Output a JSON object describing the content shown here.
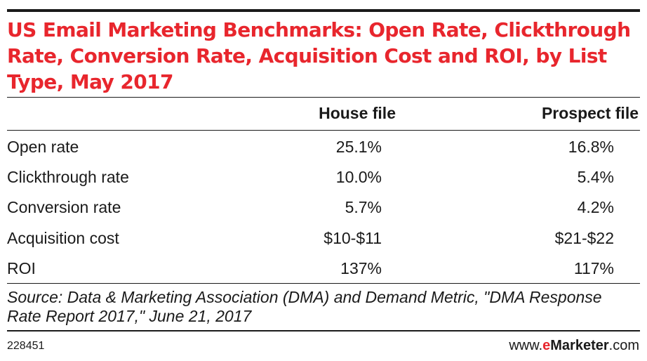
{
  "title": "US Email Marketing Benchmarks: Open Rate, Clickthrough Rate, Conversion Rate, Acquisition Cost and ROI, by List Type, May 2017",
  "chart_data": {
    "type": "table",
    "title": "US Email Marketing Benchmarks: Open Rate, Clickthrough Rate, Conversion Rate, Acquisition Cost and ROI, by List Type, May 2017",
    "columns": [
      "House file",
      "Prospect file"
    ],
    "rows": [
      {
        "label": "Open rate",
        "values": [
          "25.1%",
          "16.8%"
        ]
      },
      {
        "label": "Clickthrough rate",
        "values": [
          "10.0%",
          "5.4%"
        ]
      },
      {
        "label": "Conversion rate",
        "values": [
          "5.7%",
          "4.2%"
        ]
      },
      {
        "label": "Acquisition cost",
        "values": [
          "$10-$11",
          "$21-$22"
        ]
      },
      {
        "label": "ROI",
        "values": [
          "137%",
          "117%"
        ]
      }
    ]
  },
  "source": "Source: Data & Marketing Association (DMA) and Demand Metric, \"DMA Response Rate Report 2017,\" June 21, 2017",
  "chart_id": "228451",
  "brand": {
    "prefix": "www.",
    "e": "e",
    "name": "Marketer",
    "suffix": ".com"
  },
  "colors": {
    "accent": "#e8262d",
    "text": "#1a1a1a"
  }
}
